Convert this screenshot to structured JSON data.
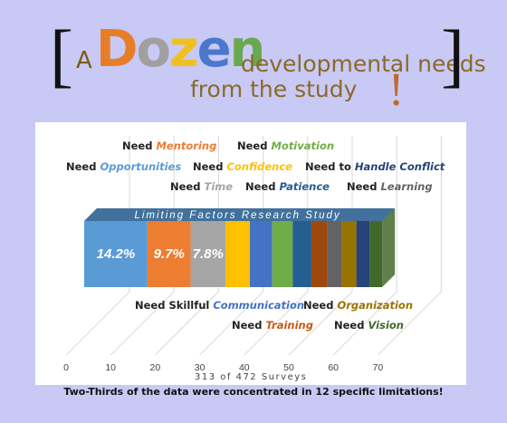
{
  "title": {
    "bracket_left": "[",
    "a": "A",
    "dozen_letters": [
      {
        "ch": "D",
        "color": "#e87d28"
      },
      {
        "ch": "o",
        "color": "#a0a0a0"
      },
      {
        "ch": "z",
        "color": "#f0c020"
      },
      {
        "ch": "e",
        "color": "#4a78cc"
      },
      {
        "ch": "n",
        "color": "#6aa84f"
      }
    ],
    "rest_line1": "developmental needs",
    "rest_line2": "from the study",
    "bang": "!",
    "bracket_right": "]"
  },
  "chart_data": {
    "type": "bar",
    "orientation": "horizontal-stacked",
    "title": "Limiting Factors Research Study",
    "xlabel": "313 of 472 Surveys",
    "xlim": [
      0,
      75
    ],
    "x_ticks": [
      "0",
      "10",
      "20",
      "30",
      "40",
      "50",
      "60",
      "70"
    ],
    "series": [
      {
        "name": "Need Opportunities",
        "value": 14.2,
        "color": "#5b9bd5",
        "data_label": "14.2%"
      },
      {
        "name": "Need Mentoring",
        "value": 9.7,
        "color": "#ed7d31",
        "data_label": "9.7%"
      },
      {
        "name": "Need Time",
        "value": 7.8,
        "color": "#a5a5a5",
        "data_label": "7.8%"
      },
      {
        "name": "Need Confidence",
        "value": 5.5,
        "color": "#ffc000",
        "data_label": ""
      },
      {
        "name": "Need Skillful Communication",
        "value": 5.0,
        "color": "#4472c4",
        "data_label": ""
      },
      {
        "name": "Need Motivation",
        "value": 4.6,
        "color": "#70ad47",
        "data_label": ""
      },
      {
        "name": "Need Patience",
        "value": 4.2,
        "color": "#255e91",
        "data_label": ""
      },
      {
        "name": "Need Training",
        "value": 3.6,
        "color": "#9e480e",
        "data_label": ""
      },
      {
        "name": "Need Handle Conflict",
        "value": 3.3,
        "color": "#636363",
        "data_label": ""
      },
      {
        "name": "Need Organization",
        "value": 3.2,
        "color": "#997300",
        "data_label": ""
      },
      {
        "name": "Need Learning",
        "value": 3.0,
        "color": "#264478",
        "data_label": ""
      },
      {
        "name": "Need Vision",
        "value": 2.8,
        "color": "#43682b",
        "data_label": ""
      }
    ],
    "labels": [
      {
        "prefix": "Need ",
        "word": "Mentoring",
        "color": "#ed7d31"
      },
      {
        "prefix": "Need ",
        "word": "Motivation",
        "color": "#70ad47"
      },
      {
        "prefix": "Need ",
        "word": "Opportunities",
        "color": "#5b9bd5"
      },
      {
        "prefix": "Need ",
        "word": "Confidence",
        "color": "#ffc000"
      },
      {
        "prefix": "Need to ",
        "word": "Handle Conflict",
        "color": "#264478"
      },
      {
        "prefix": "Need ",
        "word": "Time",
        "color": "#a5a5a5"
      },
      {
        "prefix": "Need ",
        "word": "Patience",
        "color": "#255e91"
      },
      {
        "prefix": "Need ",
        "word": "Learning",
        "color": "#636363"
      },
      {
        "prefix": "Need Skillful ",
        "word": "Communication",
        "color": "#4472c4"
      },
      {
        "prefix": "Need ",
        "word": "Organization",
        "color": "#997300"
      },
      {
        "prefix": "Need ",
        "word": "Training",
        "color": "#c55a11"
      },
      {
        "prefix": "Need ",
        "word": "Vision",
        "color": "#43682b"
      }
    ],
    "grid": true
  },
  "footer_note": "Two-Thirds of the data were concentrated in 12 specific limitations!"
}
